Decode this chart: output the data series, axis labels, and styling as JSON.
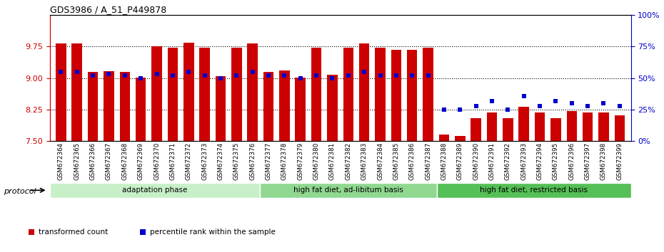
{
  "title": "GDS3986 / A_51_P449878",
  "samples": [
    "GSM672364",
    "GSM672365",
    "GSM672366",
    "GSM672367",
    "GSM672368",
    "GSM672369",
    "GSM672370",
    "GSM672371",
    "GSM672372",
    "GSM672373",
    "GSM672374",
    "GSM672375",
    "GSM672376",
    "GSM672377",
    "GSM672378",
    "GSM672379",
    "GSM672380",
    "GSM672381",
    "GSM672382",
    "GSM672383",
    "GSM672384",
    "GSM672385",
    "GSM672386",
    "GSM672387",
    "GSM672388",
    "GSM672389",
    "GSM672390",
    "GSM672391",
    "GSM672392",
    "GSM672393",
    "GSM672394",
    "GSM672395",
    "GSM672396",
    "GSM672397",
    "GSM672398",
    "GSM672399"
  ],
  "bar_heights": [
    9.82,
    9.82,
    9.15,
    9.17,
    9.14,
    9.02,
    9.75,
    9.72,
    9.84,
    9.72,
    9.05,
    9.72,
    9.82,
    9.15,
    9.18,
    9.02,
    9.72,
    9.08,
    9.72,
    9.82,
    9.72,
    9.68,
    9.68,
    9.72,
    7.65,
    7.62,
    8.05,
    8.18,
    8.05,
    8.32,
    8.18,
    8.05,
    8.22,
    8.18,
    8.18,
    8.12
  ],
  "percentile_ranks": [
    55,
    55,
    52,
    53,
    52,
    50,
    53,
    52,
    55,
    52,
    50,
    52,
    55,
    52,
    52,
    50,
    52,
    50,
    52,
    55,
    52,
    52,
    52,
    52,
    25,
    25,
    28,
    32,
    25,
    36,
    28,
    32,
    30,
    28,
    30,
    28
  ],
  "group_labels": [
    "adaptation phase",
    "high fat diet, ad-libitum basis",
    "high fat diet, restricted basis"
  ],
  "group_ranges": [
    [
      0,
      13
    ],
    [
      13,
      24
    ],
    [
      24,
      36
    ]
  ],
  "group_colors": [
    "#c8f0c8",
    "#90d890",
    "#55c055"
  ],
  "bar_color": "#cc0000",
  "dot_color": "#0000cc",
  "ylim_left": [
    7.5,
    10.5
  ],
  "ylim_right": [
    0,
    100
  ],
  "yticks_left": [
    7.5,
    8.25,
    9.0,
    9.75
  ],
  "yticks_right": [
    0,
    25,
    50,
    75,
    100
  ],
  "hlines": [
    8.25,
    9.0,
    9.75
  ],
  "legend_items": [
    "transformed count",
    "percentile rank within the sample"
  ],
  "legend_colors": [
    "#cc0000",
    "#0000cc"
  ],
  "protocol_label": "protocol"
}
